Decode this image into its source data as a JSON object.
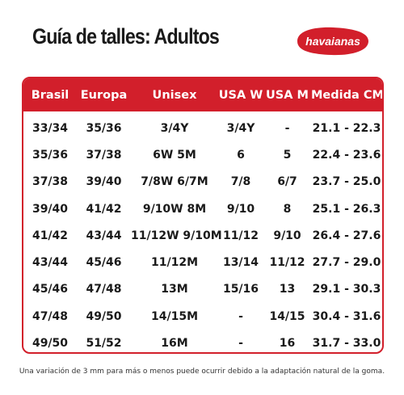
{
  "title": "Guía de talles: Adultos",
  "brand": {
    "logo_text": "havaianas",
    "color": "#d21f2b"
  },
  "table": {
    "headers": [
      "Brasil",
      "Europa",
      "Unisex",
      "USA W",
      "USA M",
      "Medida CM"
    ],
    "rows": [
      [
        "33/34",
        "35/36",
        "3/4Y",
        "3/4Y",
        "-",
        "21.1 - 22.3"
      ],
      [
        "35/36",
        "37/38",
        "6W 5M",
        "6",
        "5",
        "22.4 - 23.6"
      ],
      [
        "37/38",
        "39/40",
        "7/8W 6/7M",
        "7/8",
        "6/7",
        "23.7 - 25.0"
      ],
      [
        "39/40",
        "41/42",
        "9/10W 8M",
        "9/10",
        "8",
        "25.1 - 26.3"
      ],
      [
        "41/42",
        "43/44",
        "11/12W 9/10M",
        "11/12",
        "9/10",
        "26.4 - 27.6"
      ],
      [
        "43/44",
        "45/46",
        "11/12M",
        "13/14",
        "11/12",
        "27.7 - 29.0"
      ],
      [
        "45/46",
        "47/48",
        "13M",
        "15/16",
        "13",
        "29.1 - 30.3"
      ],
      [
        "47/48",
        "49/50",
        "14/15M",
        "-",
        "14/15",
        "30.4 - 31.6"
      ],
      [
        "49/50",
        "51/52",
        "16M",
        "-",
        "16",
        "31.7 - 33.0"
      ]
    ]
  },
  "footnote": "Una variación de 3 mm para más o menos puede ocurrir debido a la adaptación natural de la goma."
}
